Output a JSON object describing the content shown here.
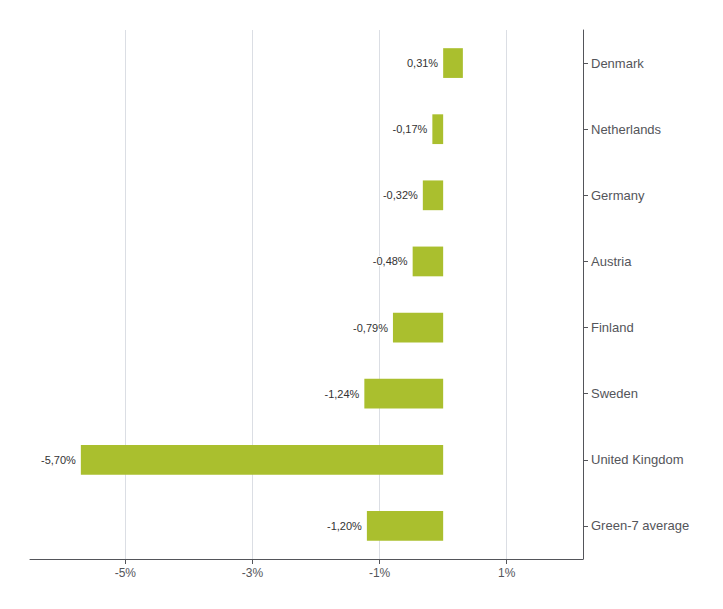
{
  "chart_data": {
    "type": "bar",
    "orientation": "horizontal",
    "categories": [
      "Denmark",
      "Netherlands",
      "Germany",
      "Austria",
      "Finland",
      "Sweden",
      "United Kingdom",
      "Green-7 average"
    ],
    "values": [
      0.31,
      -0.17,
      -0.32,
      -0.48,
      -0.79,
      -1.24,
      -5.7,
      -1.2
    ],
    "value_labels": [
      "0,31%",
      "-0,17%",
      "-0,32%",
      "-0,48%",
      "-0,79%",
      "-1,24%",
      "-5,70%",
      "-1,20%"
    ],
    "data_labels": true,
    "color": "#aabf2e",
    "xlim": [
      -6.5,
      2.2
    ],
    "xticks": [
      {
        "value": -5,
        "label": "-5%"
      },
      {
        "value": -3,
        "label": "-3%"
      },
      {
        "value": -1,
        "label": "-1%"
      },
      {
        "value": 1,
        "label": "1%"
      }
    ],
    "grid": true
  }
}
